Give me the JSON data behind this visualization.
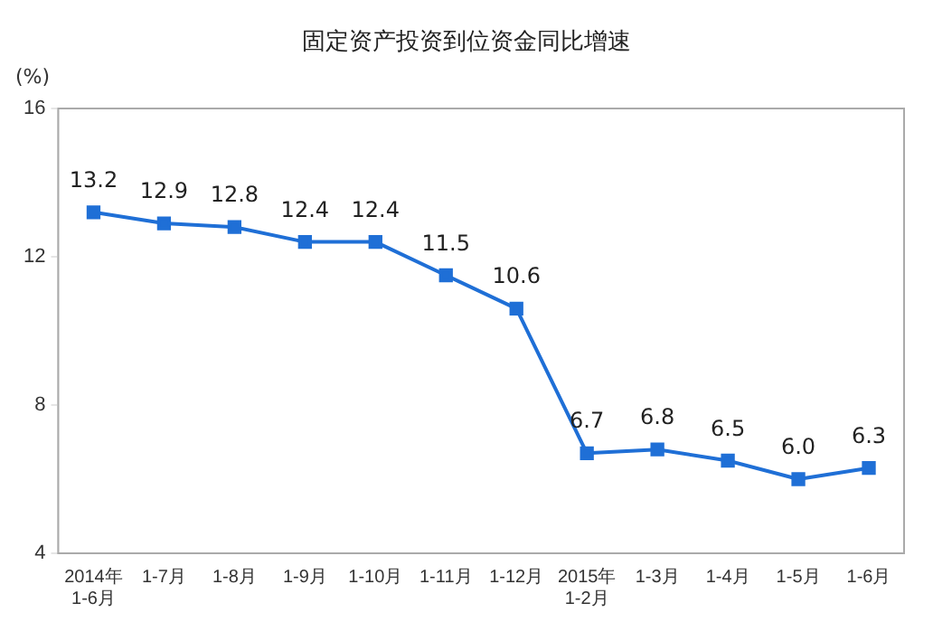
{
  "chart_data": {
    "type": "line",
    "title": "固定资产投资到位资金同比增速",
    "ylabel": "(%)",
    "categories": [
      "2014年\n1-6月",
      "1-7月",
      "1-8月",
      "1-9月",
      "1-10月",
      "1-11月",
      "1-12月",
      "2015年\n1-2月",
      "1-3月",
      "1-4月",
      "1-5月",
      "1-6月"
    ],
    "series": [
      {
        "color": "#1f6fd6",
        "values": [
          13.2,
          12.9,
          12.8,
          12.4,
          12.4,
          11.5,
          10.6,
          6.7,
          6.8,
          6.5,
          6.0,
          6.3
        ],
        "value_labels": [
          "13.2",
          "12.9",
          "12.8",
          "12.4",
          "12.4",
          "11.5",
          "10.6",
          "6.7",
          "6.8",
          "6.5",
          "6.0",
          "6.3"
        ]
      }
    ],
    "ylim": [
      4,
      16
    ],
    "yticks": [
      4,
      8,
      12,
      16
    ],
    "grid": false,
    "legend": false,
    "marker": "square",
    "line_style": "solid"
  }
}
